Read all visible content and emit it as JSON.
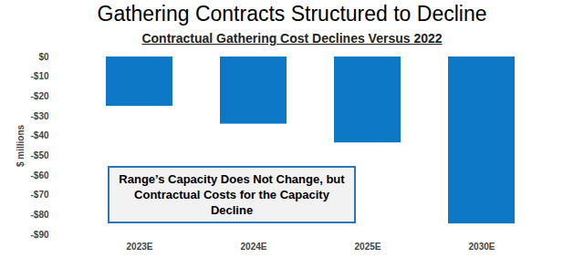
{
  "chart_data": {
    "type": "bar",
    "title": "Gathering Contracts Structured to Decline",
    "subtitle": "Contractual Gathering Cost Declines Versus 2022",
    "y_label": "$ millions",
    "annotation": "Range’s Capacity Does Not Change, but Contractual Costs for the Capacity Decline",
    "categories": [
      "2023E",
      "2024E",
      "2025E",
      "2030E"
    ],
    "values": [
      -25,
      -34,
      -43.5,
      -84.5
    ],
    "color": "#0c78c6",
    "ylim": [
      -90,
      0
    ],
    "yticks": [
      {
        "value": 0,
        "label": "$0"
      },
      {
        "value": -10,
        "label": "-$10"
      },
      {
        "value": -20,
        "label": "-$20"
      },
      {
        "value": -30,
        "label": "-$30"
      },
      {
        "value": -40,
        "label": "-$40"
      },
      {
        "value": -50,
        "label": "-$50"
      },
      {
        "value": -60,
        "label": "-$60"
      },
      {
        "value": -70,
        "label": "-$70"
      },
      {
        "value": -80,
        "label": "-$80"
      },
      {
        "value": -90,
        "label": "-$90"
      }
    ],
    "grid": false
  }
}
